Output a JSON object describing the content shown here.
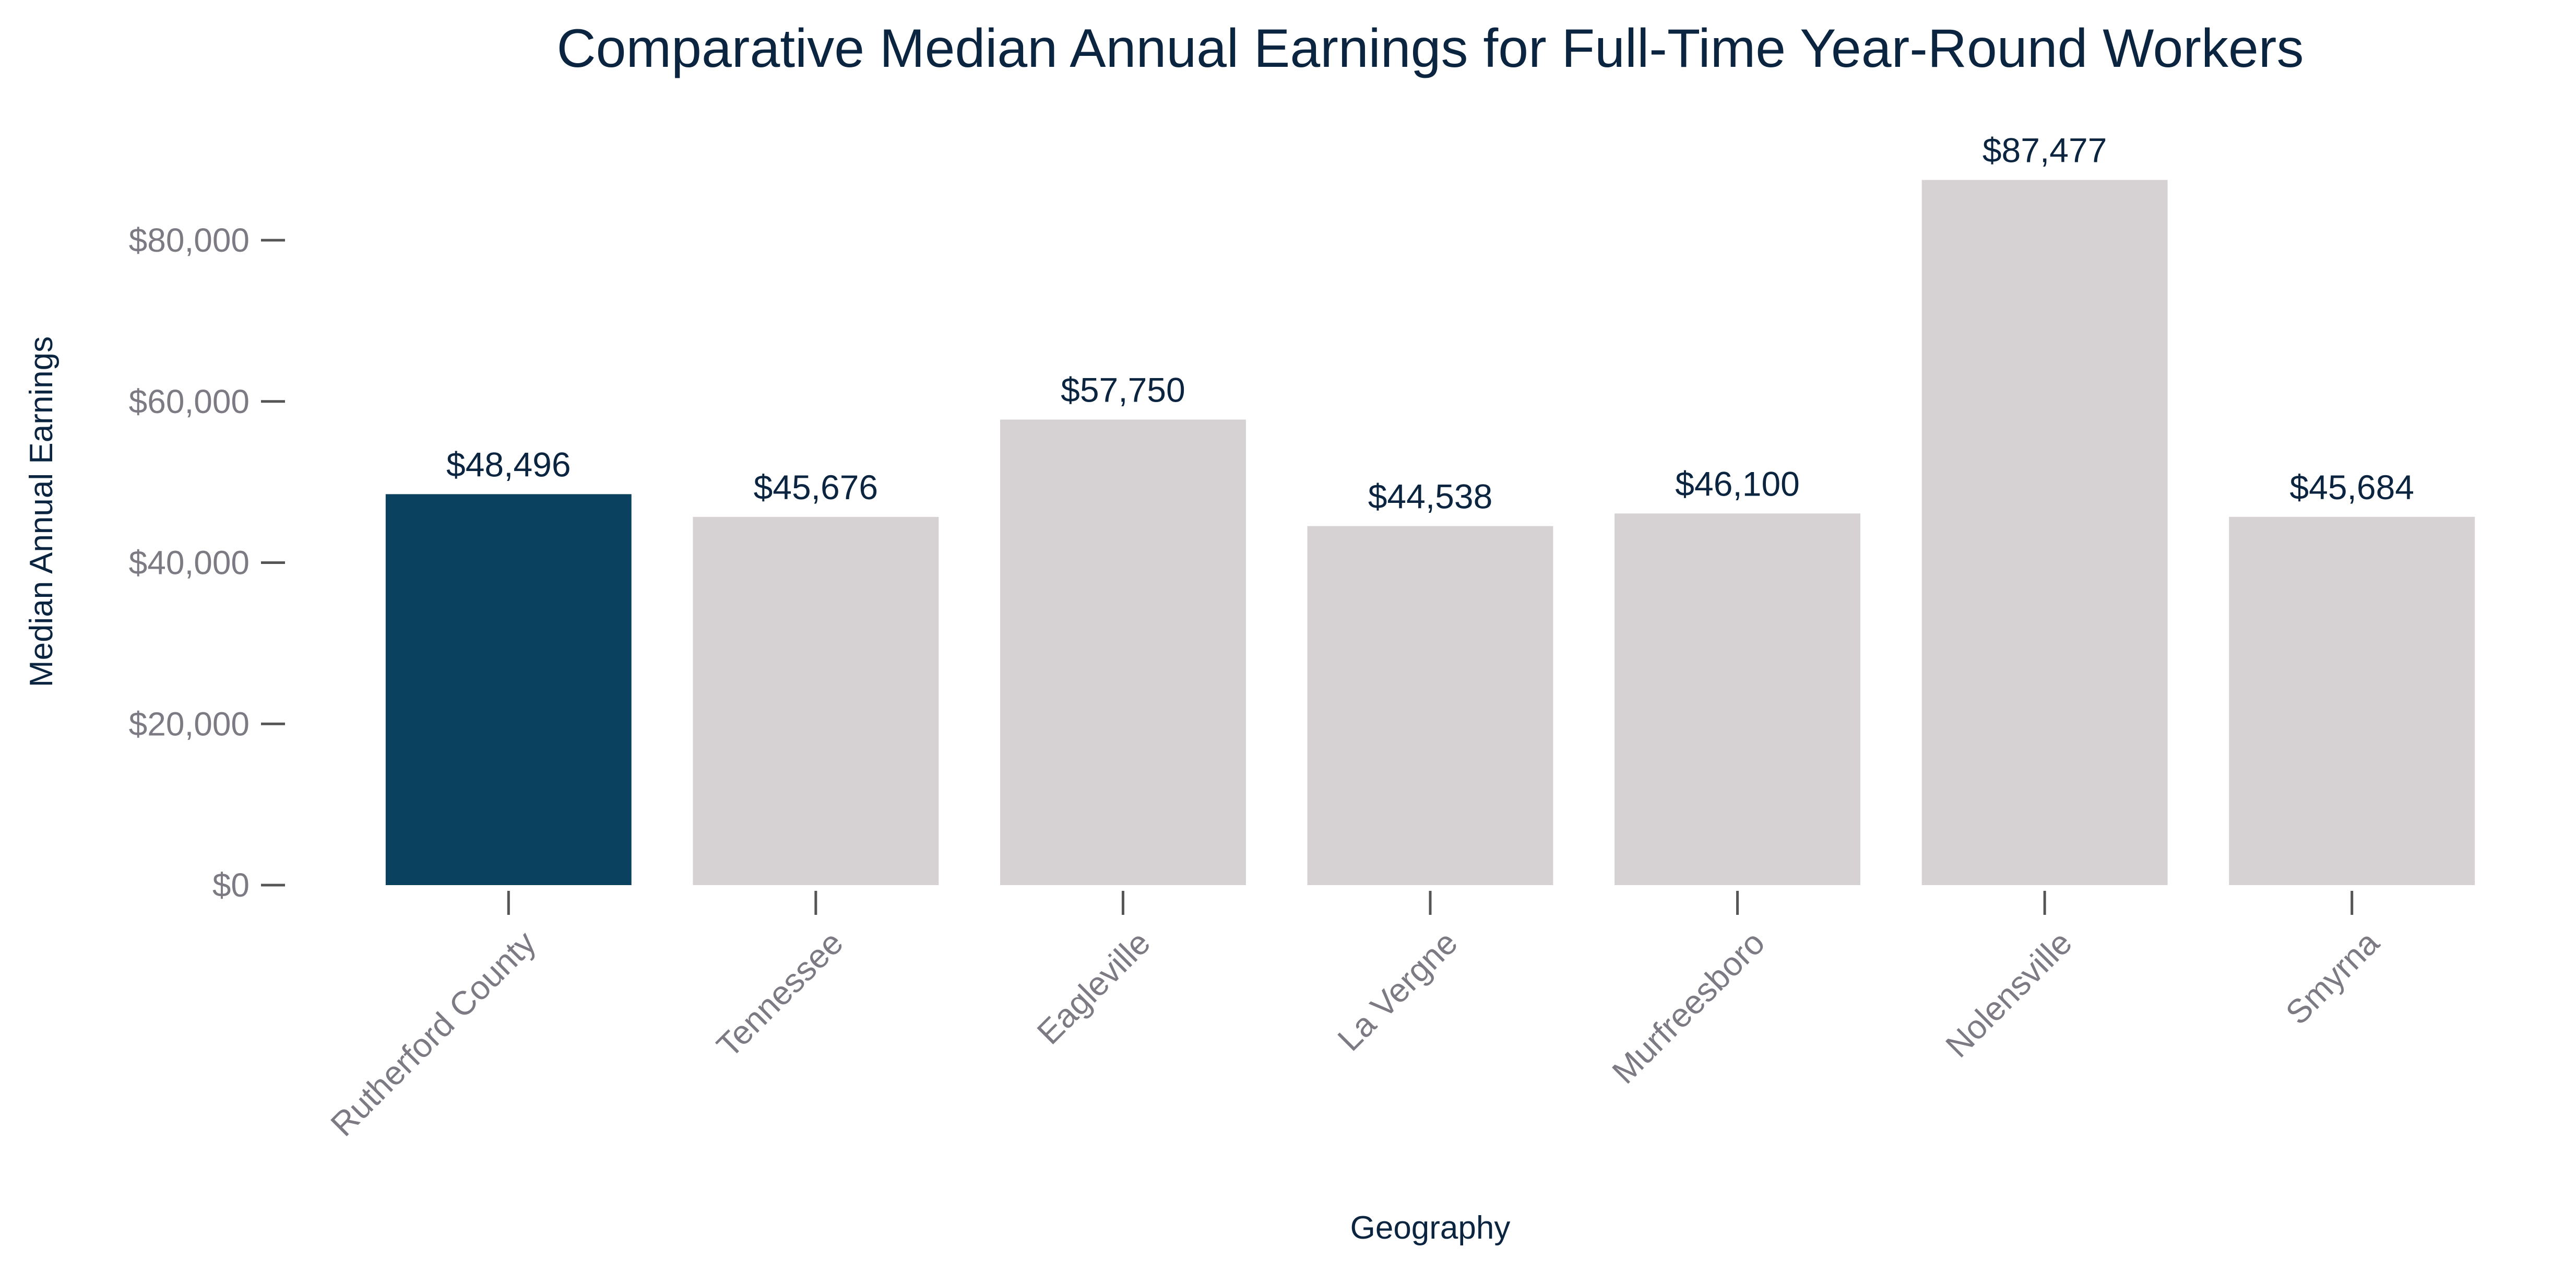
{
  "chart_data": {
    "type": "bar",
    "title": "Comparative Median Annual Earnings for Full-Time Year-Round Workers",
    "xlabel": "Geography",
    "ylabel": "Median Annual Earnings",
    "categories": [
      "Rutherford County",
      "Tennessee",
      "Eagleville",
      "La Vergne",
      "Murfreesboro",
      "Nolensville",
      "Smyrna"
    ],
    "values": [
      48496,
      45676,
      57750,
      44538,
      46100,
      87477,
      45684
    ],
    "value_labels": [
      "$48,496",
      "$45,676",
      "$57,750",
      "$44,538",
      "$46,100",
      "$87,477",
      "$45,684"
    ],
    "ylim": [
      0,
      92000
    ],
    "y_ticks": [
      0,
      20000,
      40000,
      60000,
      80000
    ],
    "y_tick_labels": [
      "$0",
      "$20,000",
      "$40,000",
      "$60,000",
      "$80,000"
    ],
    "grid": false,
    "colors": {
      "highlight": "#0a415e",
      "default": "#d6d1d3"
    },
    "highlight_index": 0
  }
}
